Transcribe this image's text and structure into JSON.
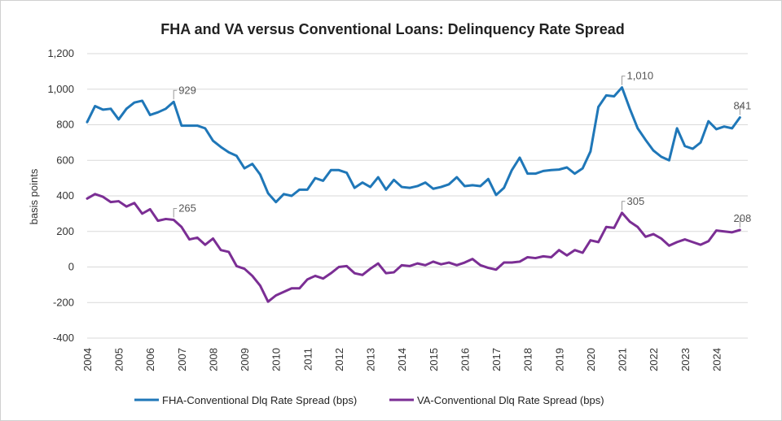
{
  "chart_data": {
    "type": "line",
    "title": "FHA and VA versus Conventional Loans: Delinquency Rate Spread",
    "ylabel": "basis points",
    "xlabel": "",
    "ylim": [
      -400,
      1200
    ],
    "yticks": [
      "-400",
      "-200",
      "0",
      "200",
      "400",
      "600",
      "800",
      "1,000",
      "1,200"
    ],
    "ytick_values": [
      -400,
      -200,
      0,
      200,
      400,
      600,
      800,
      1000,
      1200
    ],
    "xticks": [
      "2004",
      "2005",
      "2006",
      "2007",
      "2008",
      "2009",
      "2010",
      "2011",
      "2012",
      "2013",
      "2014",
      "2015",
      "2016",
      "2017",
      "2018",
      "2019",
      "2020",
      "2021",
      "2022",
      "2023",
      "2024"
    ],
    "grid": "horizontal",
    "legend_position": "bottom",
    "series": [
      {
        "name": "FHA-Conventional Dlq Rate Spread (bps)",
        "color": "#1f77b8",
        "values": [
          815,
          905,
          885,
          890,
          830,
          890,
          925,
          935,
          855,
          870,
          890,
          929,
          795,
          795,
          795,
          780,
          710,
          675,
          645,
          625,
          555,
          580,
          520,
          415,
          365,
          410,
          400,
          435,
          435,
          500,
          485,
          545,
          545,
          530,
          445,
          475,
          450,
          505,
          435,
          490,
          450,
          445,
          455,
          475,
          440,
          450,
          465,
          505,
          455,
          460,
          455,
          495,
          405,
          445,
          545,
          615,
          525,
          525,
          540,
          545,
          548,
          560,
          525,
          555,
          650,
          900,
          965,
          960,
          1010,
          890,
          780,
          715,
          655,
          620,
          600,
          780,
          680,
          665,
          700,
          820,
          775,
          790,
          780,
          841
        ]
      },
      {
        "name": "VA-Conventional Dlq Rate Spread (bps)",
        "color": "#7b2e94",
        "values": [
          385,
          410,
          395,
          365,
          370,
          340,
          360,
          300,
          325,
          260,
          270,
          265,
          225,
          155,
          165,
          125,
          160,
          95,
          85,
          5,
          -10,
          -50,
          -105,
          -195,
          -160,
          -140,
          -120,
          -120,
          -70,
          -50,
          -65,
          -35,
          0,
          5,
          -35,
          -45,
          -10,
          20,
          -35,
          -30,
          10,
          5,
          20,
          10,
          30,
          15,
          25,
          10,
          25,
          45,
          10,
          -5,
          -15,
          25,
          25,
          30,
          55,
          50,
          60,
          55,
          95,
          65,
          95,
          80,
          150,
          140,
          225,
          220,
          305,
          255,
          225,
          170,
          185,
          160,
          120,
          140,
          155,
          140,
          125,
          145,
          205,
          200,
          195,
          208
        ]
      }
    ],
    "annotations": [
      {
        "text": "929",
        "series": 0,
        "index": 11
      },
      {
        "text": "1,010",
        "series": 0,
        "index": 68
      },
      {
        "text": "841",
        "series": 0,
        "index": 83
      },
      {
        "text": "265",
        "series": 1,
        "index": 11
      },
      {
        "text": "305",
        "series": 1,
        "index": 68
      },
      {
        "text": "208",
        "series": 1,
        "index": 83
      }
    ]
  }
}
